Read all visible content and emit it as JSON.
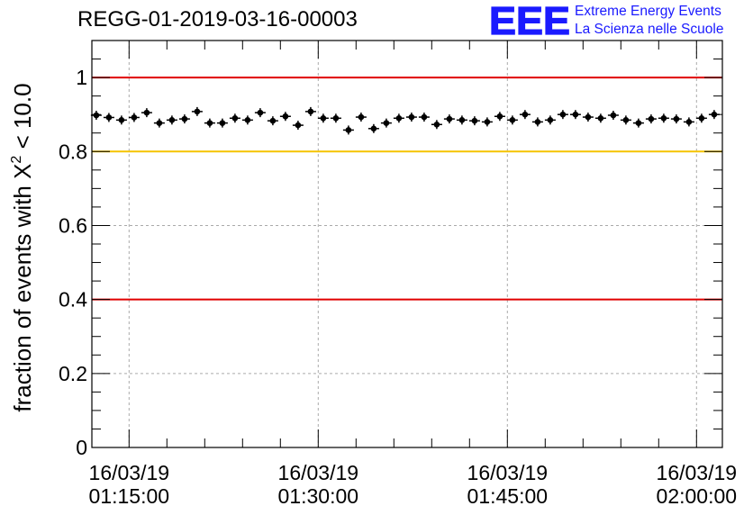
{
  "header": {
    "title": "REGG-01-2019-03-16-00003",
    "logo_letters": "EEE",
    "logo_line1": "Extreme Energy Events",
    "logo_line2": "La Scienza nelle Scuole"
  },
  "colors": {
    "logo_blue": "#1a1aff",
    "red_line": "#e00000",
    "yellow_line": "#f5c400",
    "grid": "#aaaaaa",
    "marker": "#000000"
  },
  "chart_data": {
    "type": "scatter",
    "title": "REGG-01-2019-03-16-00003",
    "ylabel": "fraction of events with X² < 10.0",
    "ylabel_parts": {
      "main": "fraction of events with X",
      "sup": "2",
      "tail": " < 10.0"
    },
    "xlabel": "",
    "x_unit": "minutes after 16/03/19 01:00:00",
    "xlim": [
      12.05,
      62.05
    ],
    "ylim": [
      0,
      1.1
    ],
    "y_ticks": [
      0,
      0.2,
      0.4,
      0.6,
      0.8,
      1
    ],
    "y_tick_labels": [
      "0",
      "0.2",
      "0.4",
      "0.6",
      "0.8",
      "1"
    ],
    "x_ticks": [
      15,
      30,
      45,
      60
    ],
    "x_tick_labels": [
      [
        "16/03/19",
        "01:15:00"
      ],
      [
        "16/03/19",
        "01:30:00"
      ],
      [
        "16/03/19",
        "01:45:00"
      ],
      [
        "16/03/19",
        "02:00:00"
      ]
    ],
    "grid": true,
    "reference_lines": [
      {
        "y": 1.0,
        "color": "red"
      },
      {
        "y": 0.8,
        "color": "yellow"
      },
      {
        "y": 0.4,
        "color": "red"
      }
    ],
    "series": [
      {
        "name": "fraction",
        "x": [
          12.4,
          13.4,
          14.4,
          15.4,
          16.4,
          17.4,
          18.4,
          19.4,
          20.4,
          21.4,
          22.4,
          23.4,
          24.4,
          25.4,
          26.4,
          27.4,
          28.4,
          29.4,
          30.4,
          31.4,
          32.4,
          33.4,
          34.4,
          35.4,
          36.4,
          37.4,
          38.4,
          39.4,
          40.4,
          41.4,
          42.4,
          43.4,
          44.4,
          45.4,
          46.4,
          47.4,
          48.4,
          49.4,
          50.4,
          51.4,
          52.4,
          53.4,
          54.4,
          55.4,
          56.4,
          57.4,
          58.4,
          59.4,
          60.4,
          61.4
        ],
        "y": [
          0.898,
          0.892,
          0.885,
          0.892,
          0.905,
          0.877,
          0.885,
          0.888,
          0.908,
          0.877,
          0.877,
          0.89,
          0.885,
          0.905,
          0.883,
          0.895,
          0.871,
          0.908,
          0.89,
          0.89,
          0.858,
          0.893,
          0.862,
          0.877,
          0.89,
          0.893,
          0.893,
          0.873,
          0.888,
          0.885,
          0.883,
          0.88,
          0.895,
          0.885,
          0.9,
          0.88,
          0.885,
          0.9,
          0.9,
          0.893,
          0.89,
          0.898,
          0.885,
          0.877,
          0.888,
          0.89,
          0.888,
          0.88,
          0.89,
          0.9
        ]
      }
    ]
  }
}
